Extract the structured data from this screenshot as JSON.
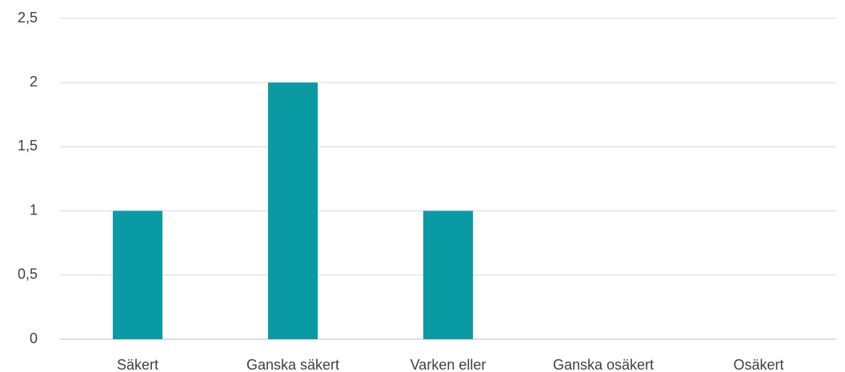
{
  "chart_data": {
    "type": "bar",
    "categories": [
      "Säkert",
      "Ganska säkert",
      "Varken eller",
      "Ganska osäkert",
      "Osäkert"
    ],
    "values": [
      1,
      2,
      1,
      0,
      0
    ],
    "color": "#0a9aa4",
    "ylim": [
      0,
      2.5
    ],
    "yticks": [
      0,
      {
        "value": 0.5,
        "label": "0,5"
      },
      1,
      {
        "value": 1.5,
        "label": "1,5"
      },
      2,
      {
        "value": 2.5,
        "label": "2,5"
      }
    ],
    "grid": true
  }
}
